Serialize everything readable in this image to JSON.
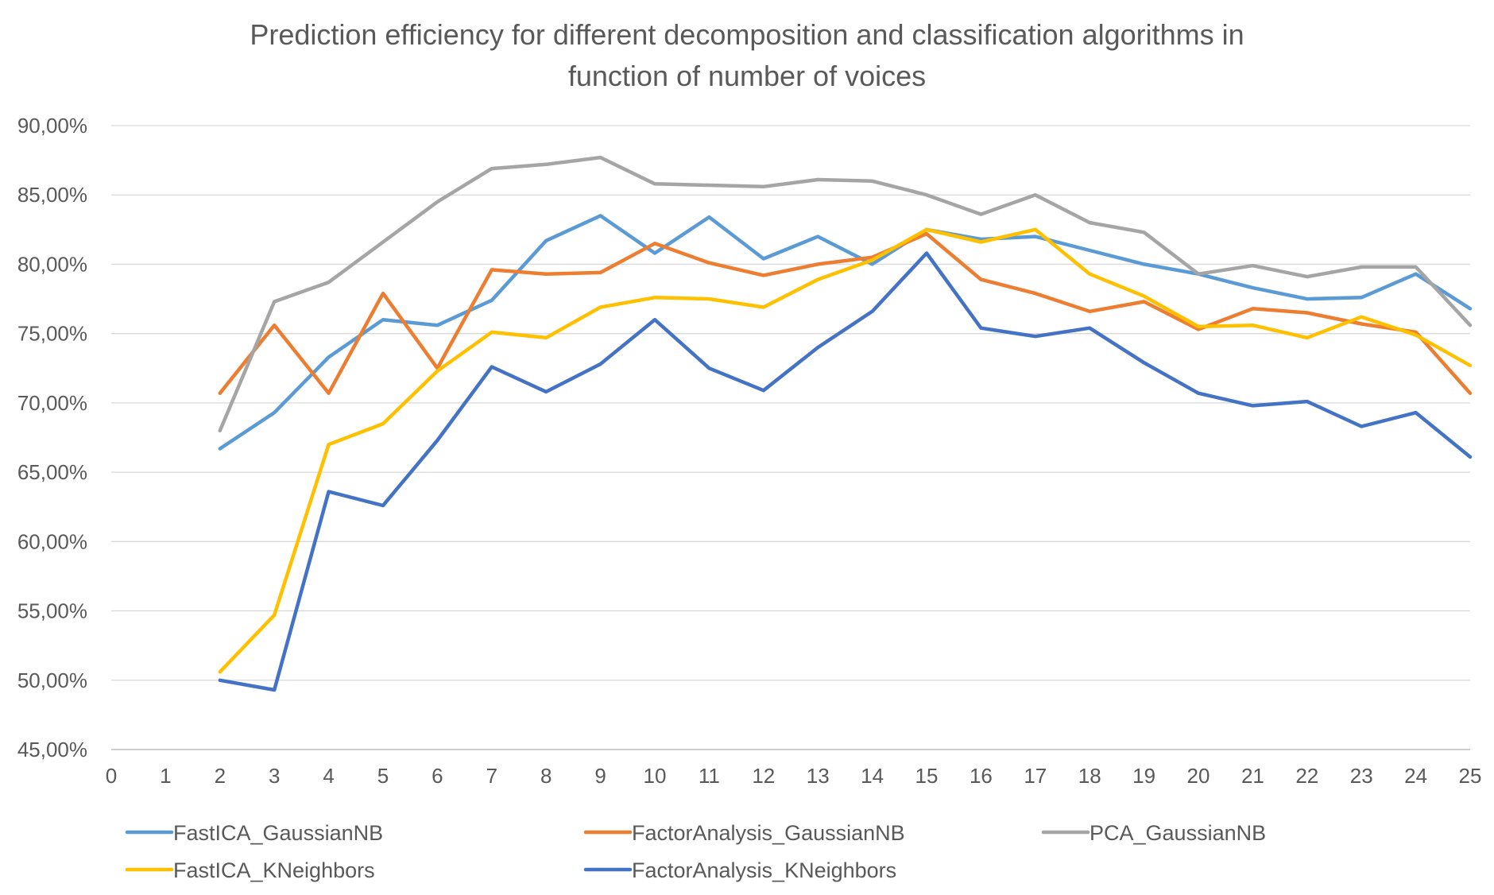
{
  "chart_data": {
    "type": "line",
    "title_lines": [
      "Prediction efficiency for different decomposition and classification algorithms in",
      "function of number of voices"
    ],
    "xlabel": "",
    "ylabel": "",
    "x_ticks": [
      0,
      1,
      2,
      3,
      4,
      5,
      6,
      7,
      8,
      9,
      10,
      11,
      12,
      13,
      14,
      15,
      16,
      17,
      18,
      19,
      20,
      21,
      22,
      23,
      24,
      25
    ],
    "x": [
      2,
      3,
      4,
      5,
      6,
      7,
      8,
      9,
      10,
      11,
      12,
      13,
      14,
      15,
      16,
      17,
      18,
      19,
      20,
      21,
      22,
      23,
      24,
      25
    ],
    "xlim": [
      0,
      25
    ],
    "ylim": [
      45,
      90
    ],
    "y_ticks": [
      45,
      50,
      55,
      60,
      65,
      70,
      75,
      80,
      85,
      90
    ],
    "y_tick_labels": [
      "45,00%",
      "50,00%",
      "55,00%",
      "60,00%",
      "65,00%",
      "70,00%",
      "75,00%",
      "80,00%",
      "85,00%",
      "90,00%"
    ],
    "grid": true,
    "legend_position": "bottom",
    "series": [
      {
        "name": "FastICA_GaussianNB",
        "color": "#5B9BD5",
        "values": [
          66.7,
          69.3,
          73.3,
          76.0,
          75.6,
          77.4,
          81.7,
          83.5,
          80.8,
          83.4,
          80.4,
          82.0,
          80.0,
          82.5,
          81.8,
          82.0,
          81.0,
          80.0,
          79.3,
          78.3,
          77.5,
          77.6,
          79.3,
          76.8
        ]
      },
      {
        "name": "FactorAnalysis_GaussianNB",
        "color": "#ED7D31",
        "values": [
          70.7,
          75.6,
          70.7,
          77.9,
          72.5,
          79.6,
          79.3,
          79.4,
          81.5,
          80.1,
          79.2,
          80.0,
          80.5,
          82.2,
          78.9,
          77.9,
          76.6,
          77.3,
          75.3,
          76.8,
          76.5,
          75.7,
          75.1,
          70.7
        ]
      },
      {
        "name": "PCA_GaussianNB",
        "color": "#A5A5A5",
        "values": [
          68.0,
          77.3,
          78.7,
          81.6,
          84.5,
          86.9,
          87.2,
          87.7,
          85.8,
          85.7,
          85.6,
          86.1,
          86.0,
          85.0,
          83.6,
          85.0,
          83.0,
          82.3,
          79.3,
          79.9,
          79.1,
          79.8,
          79.8,
          75.6
        ]
      },
      {
        "name": "FastICA_KNeighbors",
        "color": "#FFC000",
        "values": [
          50.6,
          54.7,
          67.0,
          68.5,
          72.3,
          75.1,
          74.7,
          76.9,
          77.6,
          77.5,
          76.9,
          78.9,
          80.3,
          82.5,
          81.6,
          82.5,
          79.3,
          77.7,
          75.5,
          75.6,
          74.7,
          76.2,
          74.9,
          72.7
        ]
      },
      {
        "name": "FactorAnalysis_KNeighbors",
        "color": "#4472C4",
        "values": [
          50.0,
          49.3,
          63.6,
          62.6,
          67.3,
          72.6,
          70.8,
          72.8,
          76.0,
          72.5,
          70.9,
          74.0,
          76.6,
          80.8,
          75.4,
          74.8,
          75.4,
          72.9,
          70.7,
          69.8,
          70.1,
          68.3,
          69.3,
          66.1
        ]
      }
    ]
  }
}
